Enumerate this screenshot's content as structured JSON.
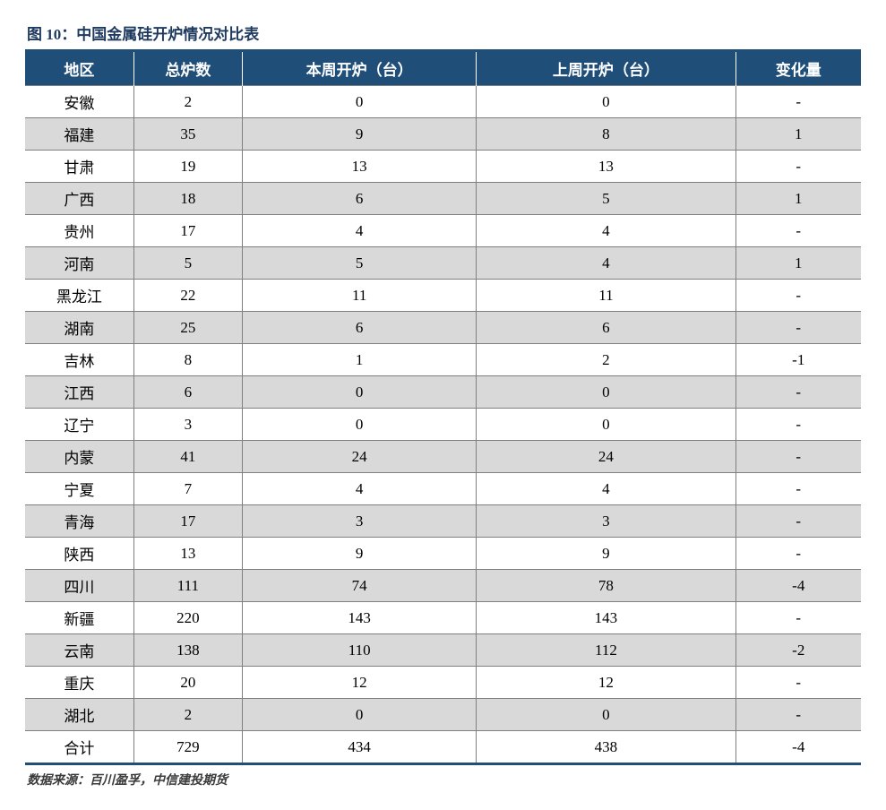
{
  "title": "图 10：中国金属硅开炉情况对比表",
  "source": "数据来源：百川盈孚，中信建投期货",
  "table": {
    "type": "table",
    "header_bg": "#1f4e79",
    "header_fg": "#ffffff",
    "row_bg_odd": "#ffffff",
    "row_bg_even": "#d9d9d9",
    "border_color": "#7f7f7f",
    "outer_border_color": "#1f4e79",
    "font_size": 17,
    "columns": [
      {
        "key": "region",
        "label": "地区",
        "width_pct": 13
      },
      {
        "key": "total",
        "label": "总炉数",
        "width_pct": 13
      },
      {
        "key": "this_week",
        "label": "本周开炉（台）",
        "width_pct": 28
      },
      {
        "key": "last_week",
        "label": "上周开炉（台）",
        "width_pct": 31
      },
      {
        "key": "change",
        "label": "变化量",
        "width_pct": 15
      }
    ],
    "rows": [
      [
        "安徽",
        "2",
        "0",
        "0",
        "-"
      ],
      [
        "福建",
        "35",
        "9",
        "8",
        "1"
      ],
      [
        "甘肃",
        "19",
        "13",
        "13",
        "-"
      ],
      [
        "广西",
        "18",
        "6",
        "5",
        "1"
      ],
      [
        "贵州",
        "17",
        "4",
        "4",
        "-"
      ],
      [
        "河南",
        "5",
        "5",
        "4",
        "1"
      ],
      [
        "黑龙江",
        "22",
        "11",
        "11",
        "-"
      ],
      [
        "湖南",
        "25",
        "6",
        "6",
        "-"
      ],
      [
        "吉林",
        "8",
        "1",
        "2",
        "-1"
      ],
      [
        "江西",
        "6",
        "0",
        "0",
        "-"
      ],
      [
        "辽宁",
        "3",
        "0",
        "0",
        "-"
      ],
      [
        "内蒙",
        "41",
        "24",
        "24",
        "-"
      ],
      [
        "宁夏",
        "7",
        "4",
        "4",
        "-"
      ],
      [
        "青海",
        "17",
        "3",
        "3",
        "-"
      ],
      [
        "陕西",
        "13",
        "9",
        "9",
        "-"
      ],
      [
        "四川",
        "111",
        "74",
        "78",
        "-4"
      ],
      [
        "新疆",
        "220",
        "143",
        "143",
        "-"
      ],
      [
        "云南",
        "138",
        "110",
        "112",
        "-2"
      ],
      [
        "重庆",
        "20",
        "12",
        "12",
        "-"
      ],
      [
        "湖北",
        "2",
        "0",
        "0",
        "-"
      ],
      [
        "合计",
        "729",
        "434",
        "438",
        "-4"
      ]
    ]
  }
}
